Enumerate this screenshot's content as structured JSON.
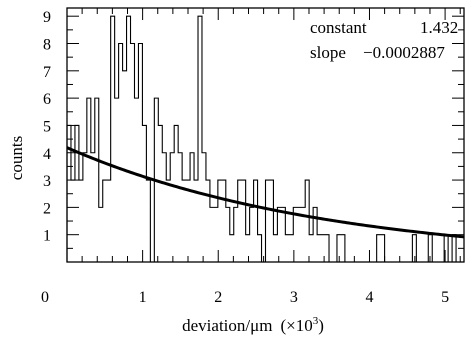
{
  "chart_data": {
    "type": "histogram",
    "xlabel": "deviation/μm",
    "xlabel_scale": "(×10",
    "xlabel_scale_exp": "3",
    "xlabel_scale_close": ")",
    "ylabel": "counts",
    "xlim": [
      0,
      5250
    ],
    "ylim": [
      0,
      9.3
    ],
    "x_ticks": [
      0,
      1000,
      2000,
      3000,
      4000,
      5000
    ],
    "x_tick_labels": [
      "0",
      "1",
      "2",
      "3",
      "4",
      "5"
    ],
    "y_ticks": [
      1,
      2,
      3,
      4,
      5,
      6,
      7,
      8,
      9
    ],
    "y_tick_labels": [
      "1",
      "2",
      "3",
      "4",
      "5",
      "6",
      "7",
      "8",
      "9"
    ],
    "bin_width": 52.5,
    "counts": [
      5,
      3,
      5,
      3,
      4,
      6,
      4,
      6,
      2,
      3,
      3,
      9,
      6,
      8,
      7,
      9,
      8,
      6,
      8,
      5,
      3,
      0,
      6,
      5,
      4,
      3,
      4,
      5,
      4,
      3,
      3,
      4,
      3,
      9,
      4,
      3,
      2,
      2,
      3,
      3,
      2,
      1,
      2,
      3,
      3,
      1,
      2,
      3,
      1,
      0,
      3,
      3,
      1,
      2,
      2,
      1,
      1,
      2,
      2,
      2,
      3,
      1,
      2,
      1,
      1,
      1,
      0,
      0,
      1,
      1,
      0,
      0,
      0,
      0,
      0,
      0,
      0,
      0,
      1,
      1,
      0,
      0,
      0,
      0,
      0,
      0,
      0,
      1,
      0,
      0,
      0,
      1,
      0,
      0,
      0,
      1,
      0,
      1,
      0,
      0
    ],
    "fit": {
      "function": "exp(constant + slope*x)",
      "constant_label": "constant",
      "constant_value": "1.432",
      "slope_label": "slope",
      "slope_value": "−0.0002887",
      "constant": 1.432,
      "slope": -0.0002887
    }
  }
}
